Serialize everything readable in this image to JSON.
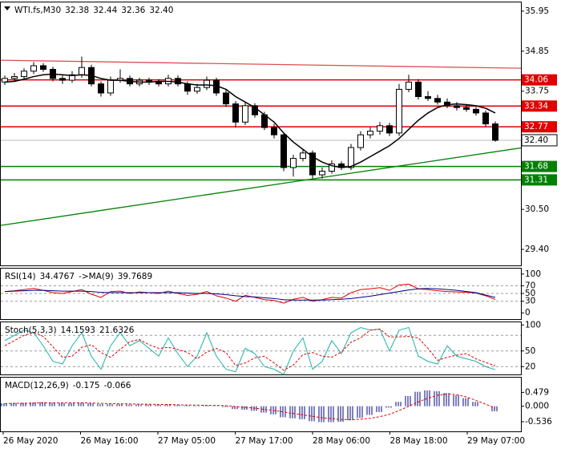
{
  "chart_data": [
    {
      "type": "candlestick",
      "header": [
        "WTI.fs,M30",
        32.38,
        32.44,
        32.36,
        {
          "value": 32.4,
          "label": "32.40"
        }
      ],
      "candles": [
        [
          34.0,
          34.18,
          33.92,
          34.1
        ],
        [
          34.1,
          34.25,
          34.02,
          34.15
        ],
        [
          34.15,
          34.38,
          34.08,
          34.3
        ],
        [
          34.3,
          34.55,
          34.22,
          34.45
        ],
        [
          34.45,
          34.52,
          34.28,
          34.35
        ],
        [
          34.35,
          34.42,
          34.02,
          34.1
        ],
        [
          34.1,
          34.18,
          33.95,
          34.05
        ],
        [
          34.05,
          34.3,
          33.98,
          34.2
        ],
        [
          34.2,
          34.7,
          34.12,
          34.4
        ],
        [
          34.4,
          34.48,
          33.88,
          33.95
        ],
        [
          33.95,
          34.02,
          33.6,
          33.7
        ],
        [
          33.7,
          34.15,
          33.62,
          34.05
        ],
        [
          34.05,
          34.35,
          33.98,
          34.1
        ],
        [
          34.1,
          34.18,
          33.88,
          33.95
        ],
        [
          33.95,
          34.12,
          33.88,
          34.05
        ],
        [
          34.05,
          34.12,
          33.92,
          34.0
        ],
        [
          34.0,
          34.08,
          33.88,
          33.95
        ],
        [
          33.95,
          34.2,
          33.88,
          34.1
        ],
        [
          34.1,
          34.18,
          33.88,
          33.95
        ],
        [
          33.95,
          34.02,
          33.65,
          33.75
        ],
        [
          33.75,
          33.95,
          33.68,
          33.85
        ],
        [
          33.85,
          34.15,
          33.78,
          34.05
        ],
        [
          34.05,
          34.12,
          33.62,
          33.7
        ],
        [
          33.7,
          33.78,
          33.32,
          33.4
        ],
        [
          33.4,
          33.48,
          32.75,
          32.9
        ],
        [
          32.9,
          33.45,
          32.82,
          33.35
        ],
        [
          33.35,
          33.42,
          33.02,
          33.1
        ],
        [
          33.1,
          33.18,
          32.68,
          32.75
        ],
        [
          32.75,
          32.85,
          32.45,
          32.55
        ],
        [
          32.55,
          32.62,
          31.55,
          31.65
        ],
        [
          31.65,
          32.0,
          31.4,
          31.9
        ],
        [
          31.9,
          32.15,
          31.82,
          32.05
        ],
        [
          32.05,
          32.12,
          31.35,
          31.45
        ],
        [
          31.45,
          31.65,
          31.35,
          31.55
        ],
        [
          31.55,
          31.85,
          31.48,
          31.75
        ],
        [
          31.75,
          31.82,
          31.58,
          31.65
        ],
        [
          31.65,
          32.3,
          31.58,
          32.2
        ],
        [
          32.2,
          32.65,
          32.12,
          32.55
        ],
        [
          32.55,
          32.75,
          32.45,
          32.65
        ],
        [
          32.65,
          32.9,
          32.55,
          32.8
        ],
        [
          32.8,
          32.88,
          32.52,
          32.6
        ],
        [
          32.6,
          33.95,
          32.52,
          33.8
        ],
        [
          33.8,
          34.2,
          33.72,
          34.0
        ],
        [
          34.0,
          34.08,
          33.52,
          33.6
        ],
        [
          33.6,
          33.75,
          33.48,
          33.55
        ],
        [
          33.55,
          33.65,
          33.38,
          33.45
        ],
        [
          33.45,
          33.55,
          33.28,
          33.35
        ],
        [
          33.35,
          33.45,
          33.22,
          33.3
        ],
        [
          33.3,
          33.38,
          33.18,
          33.25
        ],
        [
          33.25,
          33.32,
          33.08,
          33.15
        ],
        [
          33.15,
          33.22,
          32.78,
          32.85
        ],
        [
          32.85,
          32.92,
          32.36,
          32.4
        ]
      ],
      "ma": [
        34.0,
        34.02,
        34.08,
        34.15,
        34.2,
        34.22,
        34.2,
        34.18,
        34.2,
        34.18,
        34.1,
        34.05,
        34.05,
        34.02,
        34.0,
        34.0,
        34.02,
        34.02,
        34.0,
        33.95,
        33.92,
        33.92,
        33.9,
        33.8,
        33.6,
        33.45,
        33.3,
        33.1,
        32.9,
        32.6,
        32.35,
        32.15,
        31.95,
        31.8,
        31.7,
        31.65,
        31.68,
        31.8,
        31.95,
        32.1,
        32.25,
        32.45,
        32.7,
        32.95,
        33.15,
        33.3,
        33.38,
        33.4,
        33.38,
        33.35,
        33.28,
        33.15
      ],
      "ma_color": "#000000",
      "ylim": [
        28.96,
        36.19
      ],
      "yticks": [
        35.95,
        34.85,
        33.75,
        {
          "value": 30.5,
          "label": "30.50"
        },
        {
          "value": 29.4,
          "label": "29.40"
        }
      ],
      "levels": [
        {
          "value": 34.06,
          "color": "#e00000"
        },
        {
          "value": 33.34,
          "color": "#e00000"
        },
        {
          "value": 32.77,
          "color": "#e00000"
        },
        {
          "value": 31.68,
          "color": "#008000"
        },
        {
          "value": 31.31,
          "color": "#008000"
        }
      ],
      "current": {
        "value": 32.4,
        "label": "32.40"
      },
      "trendlines": [
        {
          "start": 34.6,
          "end": 34.38,
          "color": "#e05050"
        },
        {
          "start": 30.06,
          "end": 32.19,
          "color": "#008000"
        }
      ],
      "x_labels": [
        "26 May 2020",
        "26 May 16:00",
        "27 May 05:00",
        "27 May 17:00",
        "28 May 06:00",
        "28 May 18:00",
        "29 May 07:00"
      ]
    },
    {
      "type": "rsi",
      "header": [
        "RSI(14)",
        34.4767,
        "->MA(9)",
        39.7689
      ],
      "series": [
        {
          "name": "RSI(14)",
          "color": "#e00000",
          "values": [
            55,
            57,
            60,
            63,
            58,
            52,
            50,
            55,
            60,
            48,
            40,
            55,
            56,
            50,
            54,
            52,
            50,
            56,
            50,
            45,
            48,
            55,
            44,
            38,
            30,
            45,
            40,
            34,
            32,
            25,
            35,
            40,
            30,
            34,
            40,
            38,
            52,
            60,
            62,
            65,
            58,
            72,
            74,
            62,
            60,
            57,
            55,
            54,
            53,
            51,
            44,
            34.4767
          ]
        },
        {
          "name": "MA(9)",
          "color": "#000080",
          "values": [
            55,
            56,
            57,
            58,
            58,
            57,
            56,
            56,
            56,
            55,
            53,
            52,
            52,
            52,
            52,
            52,
            52,
            52,
            52,
            51,
            50,
            50,
            49,
            47,
            44,
            42,
            41,
            39,
            37,
            34,
            33,
            33,
            33,
            33,
            34,
            35,
            37,
            40,
            43,
            47,
            51,
            55,
            59,
            62,
            63,
            62,
            60,
            58,
            55,
            52,
            46,
            39.7689
          ]
        }
      ],
      "ylim": [
        -16,
        114
      ],
      "yticks": [
        100,
        70,
        50,
        30,
        0
      ],
      "levels": [
        70,
        50,
        30
      ]
    },
    {
      "type": "stoch",
      "header": [
        "Stoch(5,3,3)",
        14.1593,
        21.6326
      ],
      "series": [
        {
          "name": "Main",
          "color": "#20b2aa",
          "values": [
            70,
            80,
            90,
            85,
            60,
            30,
            25,
            60,
            85,
            40,
            15,
            60,
            85,
            60,
            70,
            55,
            40,
            75,
            45,
            20,
            40,
            85,
            40,
            15,
            10,
            55,
            45,
            20,
            15,
            5,
            50,
            75,
            15,
            30,
            70,
            45,
            85,
            95,
            90,
            92,
            50,
            90,
            95,
            40,
            30,
            25,
            60,
            40,
            35,
            30,
            20,
            14.1593
          ]
        },
        {
          "name": "Signal",
          "color": "#e00000",
          "dashed": true,
          "values": [
            60,
            70,
            80,
            85,
            78,
            58,
            38,
            40,
            57,
            62,
            47,
            38,
            53,
            68,
            72,
            62,
            55,
            57,
            53,
            47,
            35,
            48,
            55,
            47,
            22,
            27,
            37,
            40,
            27,
            13,
            23,
            43,
            47,
            40,
            38,
            48,
            67,
            75,
            90,
            92,
            77,
            77,
            78,
            75,
            55,
            32,
            38,
            42,
            45,
            35,
            28,
            21.6326
          ]
        }
      ],
      "ylim": [
        5,
        105
      ],
      "yticks": [
        100,
        50,
        20
      ],
      "levels": [
        80,
        50,
        20
      ]
    },
    {
      "type": "macd",
      "header": [
        "MACD(12,26,9)",
        -0.175,
        -0.066
      ],
      "series": [
        {
          "name": "MACD",
          "color": "#000080",
          "values": [
            0.1,
            0.11,
            0.12,
            0.13,
            0.14,
            0.12,
            0.11,
            0.11,
            0.12,
            0.1,
            0.07,
            0.07,
            0.07,
            0.06,
            0.06,
            0.06,
            0.05,
            0.05,
            0.04,
            0.03,
            0.02,
            0.03,
            0.01,
            -0.03,
            -0.1,
            -0.12,
            -0.16,
            -0.22,
            -0.28,
            -0.38,
            -0.42,
            -0.45,
            -0.52,
            -0.55,
            -0.55,
            -0.54,
            -0.48,
            -0.4,
            -0.3,
            -0.2,
            -0.05,
            0.15,
            0.35,
            0.5,
            0.55,
            0.52,
            0.46,
            0.38,
            0.28,
            0.15,
            0.0,
            -0.175
          ]
        },
        {
          "name": "Signal",
          "color": "#e00000",
          "dashed": true,
          "values": [
            0.09,
            0.1,
            0.1,
            0.11,
            0.12,
            0.12,
            0.12,
            0.12,
            0.12,
            0.11,
            0.1,
            0.09,
            0.08,
            0.08,
            0.07,
            0.07,
            0.06,
            0.06,
            0.05,
            0.04,
            0.04,
            0.03,
            0.03,
            0.02,
            -0.01,
            -0.04,
            -0.07,
            -0.11,
            -0.15,
            -0.2,
            -0.25,
            -0.3,
            -0.35,
            -0.4,
            -0.43,
            -0.46,
            -0.47,
            -0.45,
            -0.42,
            -0.36,
            -0.28,
            -0.15,
            0.0,
            0.15,
            0.28,
            0.38,
            0.42,
            0.4,
            0.32,
            0.2,
            0.07,
            -0.066
          ]
        }
      ],
      "ylim": [
        -0.87,
        0.99
      ],
      "yticks": [
        0.479,
        {
          "value": 0,
          "label": "0.000"
        },
        -0.536
      ]
    }
  ]
}
